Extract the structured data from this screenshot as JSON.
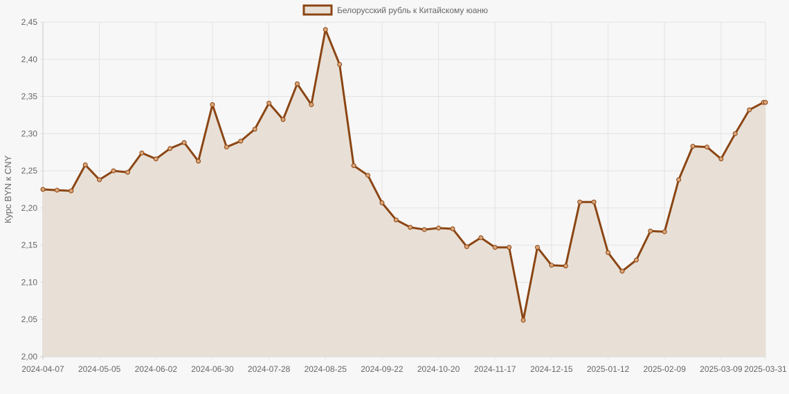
{
  "chart_data": {
    "type": "area",
    "ylabel": "Курс BYN к CNY",
    "ylim": [
      2.0,
      2.45
    ],
    "yticks": [
      "2,00",
      "2,05",
      "2,10",
      "2,15",
      "2,20",
      "2,25",
      "2,30",
      "2,35",
      "2,40",
      "2,45"
    ],
    "x_tick_labels": [
      "2024-04-07",
      "2024-05-05",
      "2024-06-02",
      "2024-06-30",
      "2024-07-28",
      "2024-08-25",
      "2024-09-22",
      "2024-10-20",
      "2024-11-17",
      "2024-12-15",
      "2025-01-12",
      "2025-02-09",
      "2025-03-09",
      "2025-03-31"
    ],
    "legend_position": "top-center",
    "grid": true,
    "series": [
      {
        "name": "Белорусский рубль к Китайскому юаню",
        "color": "#8b4513",
        "fill": "#e8e0d6",
        "x": [
          "2024-04-07",
          "2024-04-14",
          "2024-04-21",
          "2024-04-28",
          "2024-05-05",
          "2024-05-12",
          "2024-05-19",
          "2024-05-26",
          "2024-06-02",
          "2024-06-09",
          "2024-06-16",
          "2024-06-23",
          "2024-06-30",
          "2024-07-07",
          "2024-07-14",
          "2024-07-21",
          "2024-07-28",
          "2024-08-04",
          "2024-08-11",
          "2024-08-18",
          "2024-08-25",
          "2024-09-01",
          "2024-09-08",
          "2024-09-15",
          "2024-09-22",
          "2024-09-29",
          "2024-10-06",
          "2024-10-13",
          "2024-10-20",
          "2024-10-27",
          "2024-11-03",
          "2024-11-10",
          "2024-11-17",
          "2024-11-24",
          "2024-12-01",
          "2024-12-08",
          "2024-12-15",
          "2024-12-22",
          "2024-12-29",
          "2025-01-05",
          "2025-01-12",
          "2025-01-19",
          "2025-01-26",
          "2025-02-02",
          "2025-02-09",
          "2025-02-16",
          "2025-02-23",
          "2025-03-02",
          "2025-03-09",
          "2025-03-16",
          "2025-03-23",
          "2025-03-30",
          "2025-03-31"
        ],
        "values": [
          2.225,
          2.224,
          2.223,
          2.258,
          2.238,
          2.25,
          2.248,
          2.274,
          2.266,
          2.28,
          2.288,
          2.263,
          2.339,
          2.282,
          2.29,
          2.306,
          2.341,
          2.319,
          2.367,
          2.339,
          2.44,
          2.393,
          2.257,
          2.244,
          2.207,
          2.184,
          2.174,
          2.171,
          2.173,
          2.172,
          2.148,
          2.16,
          2.147,
          2.147,
          2.049,
          2.147,
          2.123,
          2.122,
          2.208,
          2.208,
          2.14,
          2.115,
          2.13,
          2.169,
          2.168,
          2.238,
          2.283,
          2.282,
          2.266,
          2.3,
          2.332,
          2.342,
          2.342
        ]
      }
    ]
  }
}
